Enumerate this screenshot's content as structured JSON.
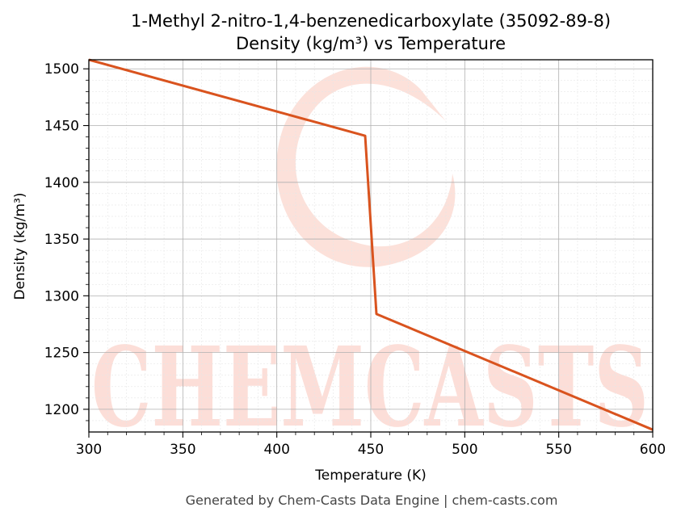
{
  "chart_data": {
    "type": "line",
    "title": "1-Methyl 2-nitro-1,4-benzenedicarboxylate (35092-89-8)",
    "subtitle": "Density (kg/m³) vs Temperature",
    "xlabel": "Temperature (K)",
    "ylabel": "Density (kg/m³)",
    "xlim": [
      300,
      600
    ],
    "ylim": [
      1180,
      1508
    ],
    "xticks": [
      300,
      350,
      400,
      450,
      500,
      550,
      600
    ],
    "yticks": [
      1200,
      1250,
      1300,
      1350,
      1400,
      1450,
      1500
    ],
    "grid": true,
    "series": [
      {
        "color": "#d9531e",
        "x": [
          300,
          447,
          453,
          600
        ],
        "y": [
          1508,
          1441,
          1284,
          1182
        ]
      }
    ]
  },
  "footer": "Generated by Chem-Casts Data Engine | chem-casts.com",
  "watermark": {
    "text": "CHEMCASTS",
    "color": "#fbd4cb"
  }
}
